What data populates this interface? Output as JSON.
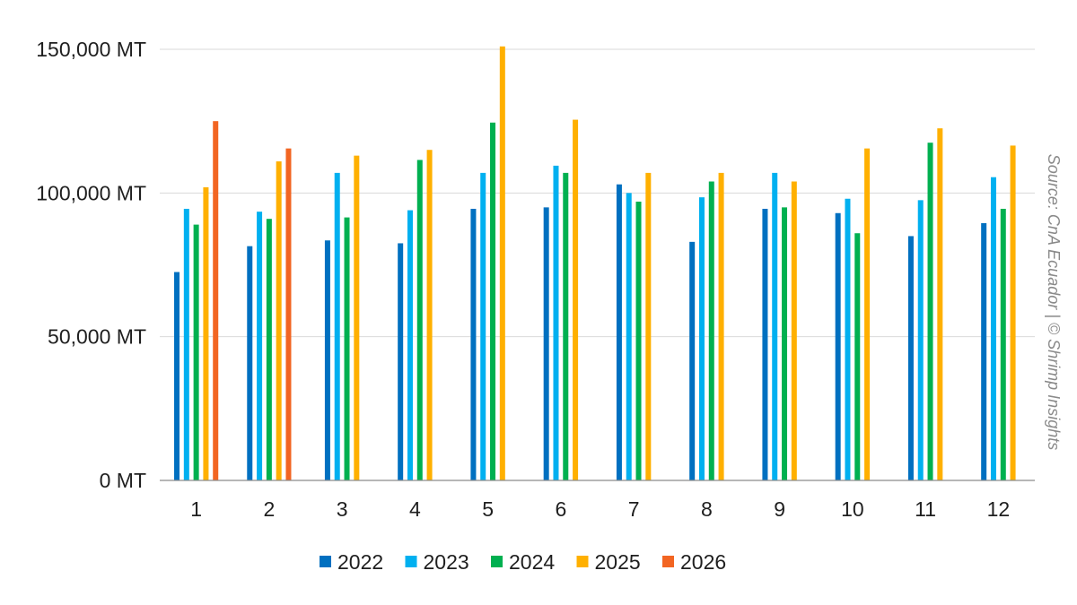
{
  "chart_data": {
    "type": "bar",
    "categories": [
      "1",
      "2",
      "3",
      "4",
      "5",
      "6",
      "7",
      "8",
      "9",
      "10",
      "11",
      "12"
    ],
    "series": [
      {
        "name": "2022",
        "color": "#0070c0",
        "values": [
          72500,
          81500,
          83500,
          82500,
          94500,
          95000,
          103000,
          83000,
          94500,
          93000,
          85000,
          89500
        ]
      },
      {
        "name": "2023",
        "color": "#00b0f0",
        "values": [
          94500,
          93500,
          107000,
          94000,
          107000,
          109500,
          100000,
          98500,
          107000,
          98000,
          97500,
          105500
        ]
      },
      {
        "name": "2024",
        "color": "#00b050",
        "values": [
          89000,
          91000,
          91500,
          111500,
          124500,
          107000,
          97000,
          104000,
          95000,
          86000,
          117500,
          94500
        ]
      },
      {
        "name": "2025",
        "color": "#ffb000",
        "values": [
          102000,
          111000,
          113000,
          115000,
          151000,
          125500,
          107000,
          107000,
          104000,
          115500,
          122500,
          116500
        ]
      },
      {
        "name": "2026",
        "color": "#f26522",
        "values": [
          125000,
          115500,
          null,
          null,
          null,
          null,
          null,
          null,
          null,
          null,
          null,
          null
        ]
      }
    ],
    "yticks": [
      {
        "value": 0,
        "label": "0 MT"
      },
      {
        "value": 50000,
        "label": "50,000 MT"
      },
      {
        "value": 100000,
        "label": "100,000 MT"
      },
      {
        "value": 150000,
        "label": "150,000 MT"
      }
    ],
    "ylim": [
      0,
      150000
    ],
    "grid": true,
    "legend_position": "bottom",
    "source": "Source: CnA Ecuador | © Shrimp Insights",
    "title": "",
    "xlabel": "",
    "ylabel": ""
  }
}
